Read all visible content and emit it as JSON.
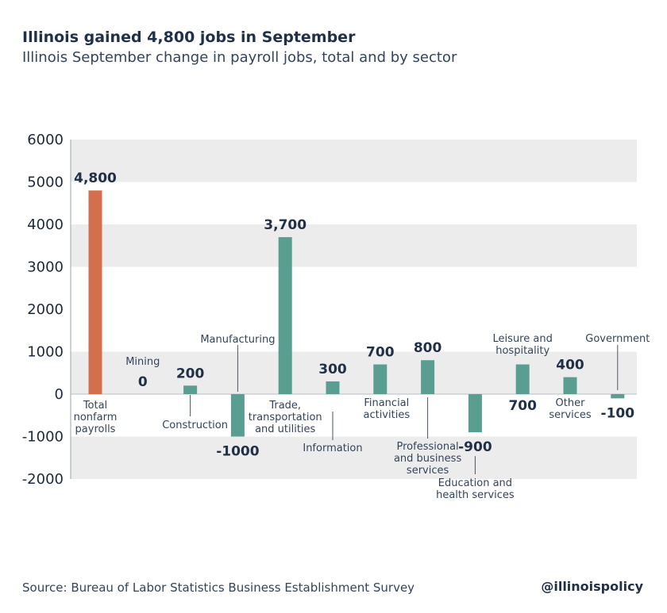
{
  "header": {
    "title": "Illinois gained 4,800 jobs in September",
    "subtitle": "Illinois September change in payroll jobs, total and by sector"
  },
  "footer": {
    "source": "Source: Bureau of Labor Statistics Business Establishment Survey",
    "handle": "@illinoispolicy"
  },
  "colors": {
    "total_bar": "#d46f4d",
    "sector_bar": "#5a9e92",
    "band": "#ececec",
    "text": "#1f3047"
  },
  "chart_data": {
    "type": "bar",
    "title": "Illinois gained 4,800 jobs in September",
    "subtitle": "Illinois September change in payroll jobs, total and by sector",
    "xlabel": "",
    "ylabel": "",
    "ylim": [
      -2000,
      6000
    ],
    "yticks": [
      "6000",
      "5000",
      "4000",
      "3000",
      "2000",
      "1000",
      "0",
      "-1000",
      "-2000"
    ],
    "grid": "alternating horizontal bands",
    "categories": [
      "Total nonfarm payrolls",
      "Mining",
      "Construction",
      "Manufacturing",
      "Trade, transportation and utilities",
      "Information",
      "Financial activities",
      "Professional and business services",
      "Education and health services",
      "Leisure and hospitality",
      "Other services",
      "Government"
    ],
    "category_label_lines": [
      [
        "Total",
        "nonfarm",
        "payrolls"
      ],
      [
        "Mining"
      ],
      [
        "Construction"
      ],
      [
        "Manufacturing"
      ],
      [
        "Trade,",
        "transportation",
        "and utilities"
      ],
      [
        "Information"
      ],
      [
        "Financial",
        "activities"
      ],
      [
        "Professional",
        "and business",
        "services"
      ],
      [
        "Education and",
        "health services"
      ],
      [
        "Leisure and",
        "hospitality"
      ],
      [
        "Other",
        "services"
      ],
      [
        "Government"
      ]
    ],
    "values": [
      4800,
      0,
      200,
      -1000,
      3700,
      300,
      700,
      800,
      -900,
      700,
      400,
      -100
    ],
    "value_labels": [
      "4,800",
      "0",
      "200",
      "-1000",
      "3,700",
      "300",
      "700",
      "800",
      "-900",
      "700",
      "400",
      "-100"
    ]
  }
}
